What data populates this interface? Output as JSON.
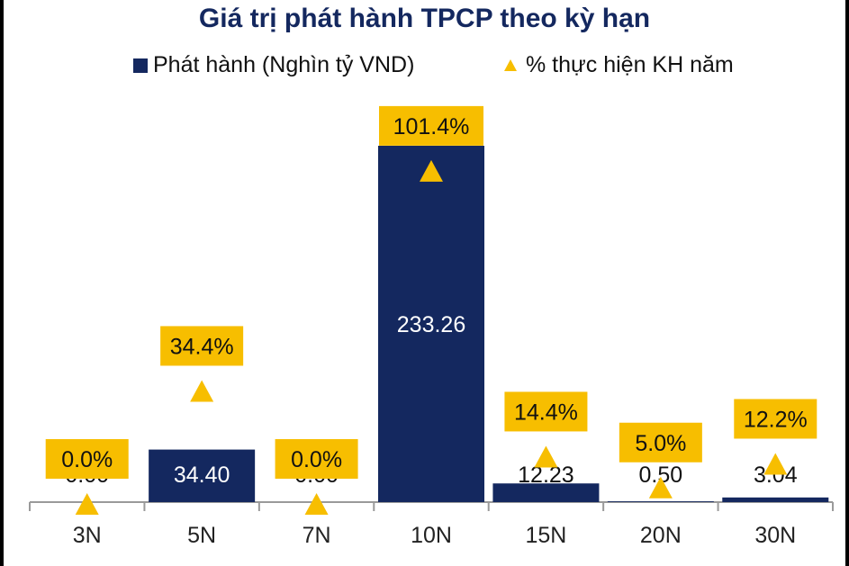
{
  "chart_data": {
    "type": "bar",
    "title": "Giá trị phát hành TPCP theo kỳ hạn",
    "categories": [
      "3N",
      "5N",
      "7N",
      "10N",
      "15N",
      "20N",
      "30N"
    ],
    "series": [
      {
        "name": "Phát hành (Nghìn tỷ VND)",
        "type": "bar",
        "values": [
          0.0,
          34.4,
          0.0,
          233.26,
          12.23,
          0.5,
          3.04
        ],
        "labels": [
          "0.00",
          "34.40",
          "0.00",
          "233.26",
          "12.23",
          "0.50",
          "3.04"
        ]
      },
      {
        "name": "% thực hiện KH năm",
        "type": "scatter",
        "marker": "triangle",
        "values": [
          0.0,
          34.4,
          0.0,
          101.4,
          14.4,
          5.0,
          12.2
        ],
        "labels": [
          "0.0%",
          "34.4%",
          "0.0%",
          "101.4%",
          "14.4%",
          "5.0%",
          "12.2%"
        ]
      }
    ],
    "bar_color": "#14285f",
    "marker_color": "#f7be00",
    "label_box_color": "#f7be00",
    "legend_position": "top",
    "grid": false
  }
}
